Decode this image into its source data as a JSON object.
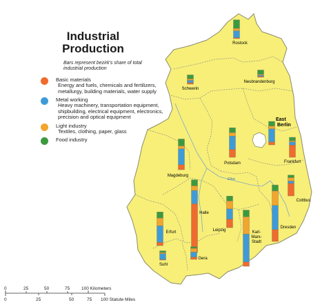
{
  "title": "Industrial Production",
  "subtitle": "Bars represent bezirk's share of total industrial production",
  "legend": [
    {
      "name": "Basic materials",
      "desc": "Energy and fuels, chemicals and fertilizers, metallurgy, building materials, water supply",
      "color": "#ef6b2e"
    },
    {
      "name": "Metal working",
      "desc": "Heavy machinery, transportation equipment, shipbuilding, electrical equipment, electronics, precision and optical equipment",
      "color": "#3f9bd8"
    },
    {
      "name": "Light industry",
      "desc": "Textiles, clothing, paper, glass",
      "color": "#f2a52e"
    },
    {
      "name": "Food industry",
      "desc": "",
      "color": "#3b9a40"
    }
  ],
  "labels": {
    "rostock": "Rostock",
    "schwerin": "Schwerin",
    "neubrandenburg": "Neubrandenburg",
    "east_berlin_1": "East",
    "east_berlin_2": "Berlin",
    "potsdam": "Potsdam",
    "frankfurt": "Frankfurt",
    "magdeburg": "Magdeburg",
    "elbe": "Elbe",
    "cottbus": "Cottbus",
    "halle": "Halle",
    "leipzig": "Leipzig",
    "dresden": "Dresden",
    "kms_1": "Karl-",
    "kms_2": "Marx-",
    "kms_3": "Stadt",
    "erfurt": "Erfurt",
    "gera": "Gera",
    "suhl": "Suhl"
  },
  "scale": {
    "km_ticks": [
      "0",
      "25",
      "50",
      "75",
      "100 Kilometers"
    ],
    "mi_ticks": [
      "0",
      "25",
      "50",
      "75",
      "100 Statute Miles"
    ]
  },
  "chart_data": {
    "type": "bar",
    "stack_order": [
      "Food industry",
      "Light industry",
      "Metal working",
      "Basic materials"
    ],
    "bezirke": [
      {
        "name": "Rostock",
        "values": [
          3,
          0.8,
          2.4,
          0.3
        ]
      },
      {
        "name": "Schwerin",
        "values": [
          1.4,
          0.5,
          0.8,
          0.5
        ]
      },
      {
        "name": "Neubrandenburg",
        "values": [
          1.5,
          0.3,
          0.4,
          0.3
        ]
      },
      {
        "name": "East Berlin",
        "values": [
          1.6,
          1.0,
          4.5,
          1.0
        ]
      },
      {
        "name": "Potsdam",
        "values": [
          1.7,
          1.2,
          4.6,
          2.7
        ]
      },
      {
        "name": "Frankfurt",
        "values": [
          1.2,
          0.4,
          1.1,
          4.2
        ]
      },
      {
        "name": "Magdeburg",
        "values": [
          2.4,
          1.0,
          5.5,
          1.7
        ]
      },
      {
        "name": "Cottbus",
        "values": [
          0.9,
          1.2,
          0.8,
          4.3
        ]
      },
      {
        "name": "Halle",
        "values": [
          2.1,
          1.6,
          4.6,
          16.8
        ]
      },
      {
        "name": "Leipzig",
        "values": [
          1.7,
          2.7,
          3.6,
          2.9
        ]
      },
      {
        "name": "Karl-Marx-Stadt",
        "values": [
          2.3,
          6.0,
          9.6,
          1.5
        ]
      },
      {
        "name": "Dresden",
        "values": [
          2.1,
          5.0,
          8.3,
          4.1
        ]
      },
      {
        "name": "Erfurt",
        "values": [
          2.1,
          2.7,
          5.7,
          1.1
        ]
      },
      {
        "name": "Gera",
        "values": [
          0.6,
          1.3,
          1.7,
          0.8
        ]
      },
      {
        "name": "Suhl",
        "values": [
          0.6,
          0.4,
          2.0,
          0.2
        ]
      }
    ]
  }
}
